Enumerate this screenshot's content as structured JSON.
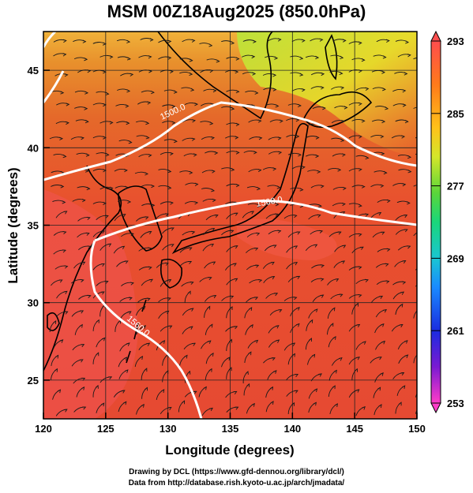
{
  "title": "MSM 00Z18Aug2025 (850.0hPa)",
  "map": {
    "xlabel": "Longitude (degrees)",
    "ylabel": "Latitude  (degrees)",
    "lon_range": [
      120,
      150
    ],
    "lat_range": [
      22.5,
      47.5
    ],
    "x_ticks": [
      "120",
      "125",
      "130",
      "135",
      "140",
      "145",
      "150"
    ],
    "y_ticks": [
      "25",
      "30",
      "35",
      "40",
      "45"
    ],
    "contour_labels": [
      "1500.0",
      "1560.0",
      "1560.0"
    ],
    "colors": {
      "warm": "#e8452f",
      "hot": "#f25050",
      "mid": "#f8a63a",
      "yellow": "#e6e02a",
      "green": "#a6e63a"
    }
  },
  "colorbar": {
    "labels": [
      "293",
      "285",
      "277",
      "269",
      "261",
      "253"
    ],
    "stops": [
      "#ff4d4d",
      "#ff8a1a",
      "#ffd21a",
      "#a6e632",
      "#1ad63a",
      "#1ad2b4",
      "#1aa6ff",
      "#1a3cff",
      "#1a1a9e",
      "#c81ad2",
      "#ff3cc8"
    ]
  },
  "credits": {
    "line1": "Drawing by DCL (https://www.gfd-dennou.org/library/dcl/)",
    "line2": "Data from http://database.rish.kyoto-u.ac.jp/arch/jmadata/"
  }
}
